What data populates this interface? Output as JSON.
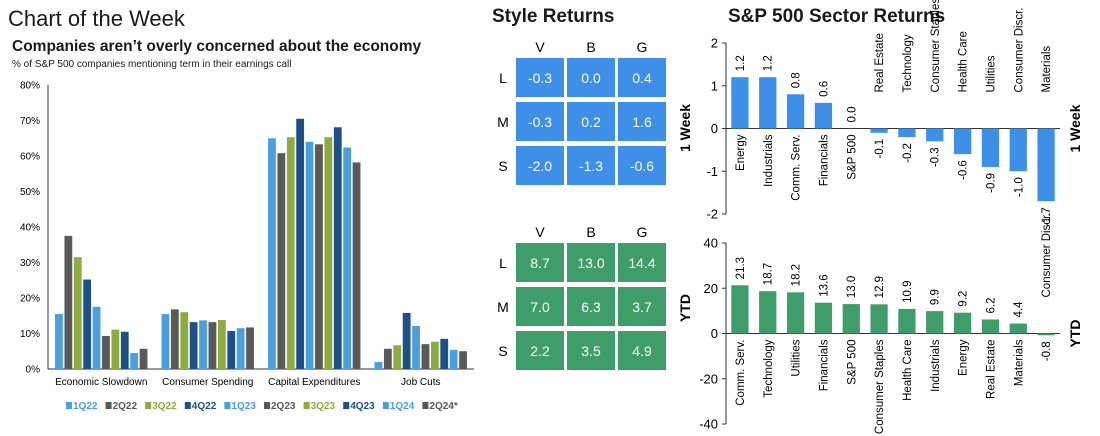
{
  "header": {
    "chart_of_week": "Chart of the Week",
    "style_returns": "Style Returns",
    "sector_returns": "S&P 500 Sector Returns"
  },
  "colors": {
    "blue_tile": "#3d8fe8",
    "green_tile": "#3f9d6a",
    "sector_week_bar": "#3d8fe8",
    "sector_ytd_bar": "#3f9d6a",
    "series": [
      "#4a9fe0",
      "#595959",
      "#8cad3d",
      "#1e4f8a",
      "#4a9fe0",
      "#595959",
      "#8cad3d",
      "#1e4f8a",
      "#4a9fe0",
      "#595959"
    ]
  },
  "chart_data": [
    {
      "type": "bar",
      "title": "Companies aren’t overly concerned about the economy",
      "subtitle": "% of S&P 500 companies mentioning term in their earnings call",
      "categories": [
        "Economic Slowdown",
        "Consumer Spending",
        "Capital Expenditures",
        "Job Cuts"
      ],
      "ylim": [
        0,
        80
      ],
      "yticks": [
        "0%",
        "10%",
        "20%",
        "30%",
        "40%",
        "50%",
        "60%",
        "70%",
        "80%"
      ],
      "grid": false,
      "legend": "bottom",
      "series": [
        {
          "name": "1Q22",
          "values": [
            15.5,
            15.5,
            65,
            2
          ]
        },
        {
          "name": "2Q22",
          "values": [
            37.5,
            16.8,
            60.8,
            5.7
          ]
        },
        {
          "name": "3Q22",
          "values": [
            31.5,
            16,
            65.3,
            6.7
          ]
        },
        {
          "name": "4Q22",
          "values": [
            25.2,
            13.2,
            70.5,
            15.8
          ]
        },
        {
          "name": "1Q23",
          "values": [
            17.5,
            13.7,
            64,
            12.1
          ]
        },
        {
          "name": "2Q23",
          "values": [
            9.3,
            13.2,
            63.3,
            7
          ]
        },
        {
          "name": "3Q23",
          "values": [
            11.1,
            13.8,
            65.3,
            7.7
          ]
        },
        {
          "name": "4Q23",
          "values": [
            10.5,
            10.7,
            68.1,
            8.5
          ]
        },
        {
          "name": "1Q24",
          "values": [
            4.5,
            11.5,
            62.4,
            5.4
          ]
        },
        {
          "name": "2Q24*",
          "values": [
            5.7,
            11.7,
            58.2,
            5
          ]
        }
      ]
    },
    {
      "type": "table",
      "title": "Style Returns",
      "row_label": "1 Week",
      "columns": [
        "V",
        "B",
        "G"
      ],
      "rows": [
        "L",
        "M",
        "S"
      ],
      "values": [
        [
          "-0.3",
          "0.0",
          "0.4"
        ],
        [
          "-0.3",
          "0.2",
          "1.6"
        ],
        [
          "-2.0",
          "-1.3",
          "-0.6"
        ]
      ]
    },
    {
      "type": "table",
      "row_label": "YTD",
      "columns": [
        "V",
        "B",
        "G"
      ],
      "rows": [
        "L",
        "M",
        "S"
      ],
      "values": [
        [
          "8.7",
          "13.0",
          "14.4"
        ],
        [
          "7.0",
          "6.3",
          "3.7"
        ],
        [
          "2.2",
          "3.5",
          "4.9"
        ]
      ]
    },
    {
      "type": "bar",
      "title": "S&P 500 Sector Returns",
      "ylabel": "1 Week",
      "ylim": [
        -2,
        2
      ],
      "yticks": [
        "-2",
        "-1",
        "0",
        "1",
        "2"
      ],
      "categories": [
        "Energy",
        "Industrials",
        "Comm. Serv.",
        "Financials",
        "S&P 500",
        "Real Estate",
        "Technology",
        "Consumer Staples",
        "Health Care",
        "Utilities",
        "Consumer Discr.",
        "Materials"
      ],
      "values": [
        1.2,
        1.2,
        0.8,
        0.6,
        0.0,
        -0.1,
        -0.2,
        -0.3,
        -0.6,
        -0.9,
        -1.0,
        -1.7
      ],
      "labels": [
        "1.2",
        "1.2",
        "0.8",
        "0.6",
        "0.0",
        "-0.1",
        "-0.2",
        "-0.3",
        "-0.6",
        "-0.9",
        "-1.0",
        "-1.7"
      ]
    },
    {
      "type": "bar",
      "ylabel": "YTD",
      "ylim": [
        -40,
        40
      ],
      "yticks": [
        "-40",
        "-20",
        "0",
        "20",
        "40"
      ],
      "categories": [
        "Comm. Serv.",
        "Technology",
        "Utilities",
        "Financials",
        "S&P 500",
        "Consumer Staples",
        "Health Care",
        "Industrials",
        "Energy",
        "Real Estate",
        "Materials",
        "Consumer Discr."
      ],
      "values": [
        21.3,
        18.7,
        18.2,
        13.6,
        13.0,
        12.9,
        10.9,
        9.9,
        9.2,
        6.2,
        4.4,
        -0.8
      ],
      "labels": [
        "21.3",
        "18.7",
        "18.2",
        "13.6",
        "13.0",
        "12.9",
        "10.9",
        "9.9",
        "9.2",
        "6.2",
        "4.4",
        "-0.8"
      ]
    }
  ]
}
